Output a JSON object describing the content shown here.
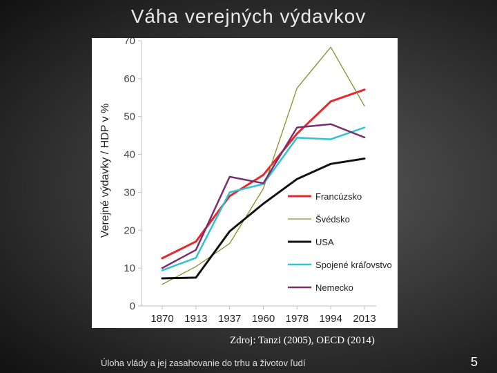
{
  "slide": {
    "title": "Váha verejných výdavkov",
    "source": "Zdroj: Tanzi (2005), OECD (2014)",
    "footer": "Úloha vlády a jej zasahovanie do trhu a životov ľudí",
    "page_number": "5"
  },
  "chart_data": {
    "type": "line",
    "title": "",
    "xlabel": "",
    "ylabel": "Verejné výdavky / HDP v %",
    "categories": [
      "1870",
      "1913",
      "1937",
      "1960",
      "1978",
      "1994",
      "2013"
    ],
    "ylim": [
      0,
      70
    ],
    "yticks": [
      0,
      10,
      20,
      30,
      40,
      50,
      60,
      70
    ],
    "grid": false,
    "legend_position": "right",
    "series": [
      {
        "name": "Francúzsko",
        "color": "#e8262b",
        "width": 3,
        "values": [
          12.6,
          17.0,
          29.0,
          34.6,
          45.5,
          54.0,
          57.1
        ]
      },
      {
        "name": "Švédsko",
        "color": "#8c8c2a",
        "width": 1.3,
        "values": [
          5.7,
          10.4,
          16.5,
          31.0,
          57.5,
          68.3,
          52.8
        ]
      },
      {
        "name": "USA",
        "color": "#111111",
        "width": 3,
        "values": [
          7.3,
          7.5,
          19.7,
          27.0,
          33.5,
          37.5,
          38.9
        ]
      },
      {
        "name": "Spojené kráľovstvo",
        "color": "#2ec3cf",
        "width": 2.5,
        "values": [
          9.4,
          12.7,
          30.0,
          32.2,
          44.4,
          44.0,
          47.1
        ]
      },
      {
        "name": "Nemecko",
        "color": "#7b2d6b",
        "width": 2.5,
        "values": [
          10.0,
          14.8,
          34.1,
          32.4,
          47.1,
          48.0,
          44.5
        ]
      }
    ]
  }
}
